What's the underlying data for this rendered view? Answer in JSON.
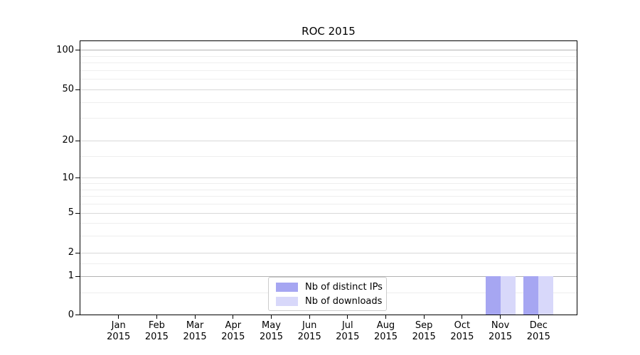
{
  "figure": {
    "background": "#ffffff"
  },
  "chart_data": {
    "type": "bar",
    "title": "ROC 2015",
    "x_axis": {
      "months": [
        "Jan",
        "Feb",
        "Mar",
        "Apr",
        "May",
        "Jun",
        "Jul",
        "Aug",
        "Sep",
        "Oct",
        "Nov",
        "Dec"
      ],
      "year": "2015"
    },
    "y_axis": {
      "scale": "log1p",
      "ticks": [
        0,
        1,
        2,
        5,
        10,
        20,
        50,
        100
      ],
      "minor_gridlines": [
        0.5,
        1.5,
        3,
        4,
        6,
        7,
        8,
        9,
        15,
        30,
        40,
        60,
        70,
        80,
        90
      ],
      "emphasized_gridlines": [
        1,
        100
      ],
      "range": [
        0,
        116
      ]
    },
    "series": [
      {
        "name": "Nb of distinct IPs",
        "color": "#a6a6f2",
        "values": [
          0,
          0,
          0,
          0,
          0,
          0,
          0,
          0,
          0,
          0,
          1,
          1
        ]
      },
      {
        "name": "Nb of downloads",
        "color": "#d8d8fa",
        "values": [
          0,
          0,
          0,
          0,
          0,
          0,
          0,
          0,
          0,
          0,
          1,
          1
        ]
      }
    ],
    "grid": true,
    "legend_position": "lower center"
  },
  "style": {
    "grid_major": "#d8d8d8",
    "grid_emphasized": "#b3b3b3",
    "grid_minor": "#eeeeee",
    "spine": "#000000",
    "text": "#000000",
    "legend_border": "#cccccc"
  }
}
